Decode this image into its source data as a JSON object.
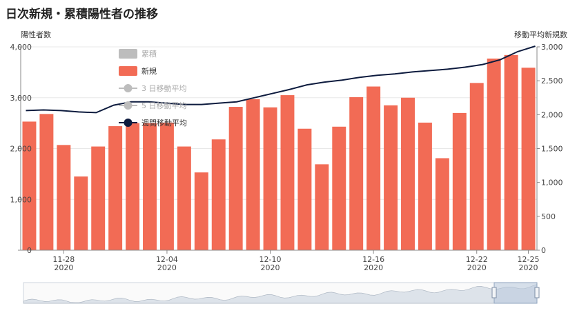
{
  "page_title": "日次新規・累積陽性者の推移",
  "colors": {
    "bar": "#f26b55",
    "line": "#0d1b3e",
    "legend_inactive": "#bdbdbd",
    "grid": "#e8e8e8",
    "navigator_fill": "#dde3ea",
    "navigator_window": "#b8c8dc"
  },
  "chart_data": {
    "type": "bar",
    "title": "日次新規・累積陽性者の推移",
    "ylabel_left": "陽性者数",
    "ylabel_right": "移動平均新規数",
    "ylim_left": [
      0,
      4000
    ],
    "ylim_right": [
      0,
      3000
    ],
    "yticks_left": [
      "0",
      "1,000",
      "2,000",
      "3,000",
      "4,000"
    ],
    "yticks_right": [
      "0",
      "500",
      "1,000",
      "1,500",
      "2,000",
      "2,500",
      "3,000"
    ],
    "x": [
      "11-26",
      "11-27",
      "11-28",
      "11-29",
      "11-30",
      "12-01",
      "12-02",
      "12-03",
      "12-04",
      "12-05",
      "12-06",
      "12-07",
      "12-08",
      "12-09",
      "12-10",
      "12-11",
      "12-12",
      "12-13",
      "12-14",
      "12-15",
      "12-16",
      "12-17",
      "12-18",
      "12-19",
      "12-20",
      "12-21",
      "12-22",
      "12-23",
      "12-24",
      "12-25"
    ],
    "x_tick_labels": [
      {
        "date": "11-28",
        "year": "2020"
      },
      {
        "date": "12-04",
        "year": "2020"
      },
      {
        "date": "12-10",
        "year": "2020"
      },
      {
        "date": "12-16",
        "year": "2020"
      },
      {
        "date": "12-22",
        "year": "2020"
      },
      {
        "date": "12-25",
        "year": "2020"
      }
    ],
    "series": [
      {
        "name": "新規",
        "axis": "left",
        "values": [
          2530,
          2680,
          2070,
          1450,
          2040,
          2440,
          2500,
          2500,
          2510,
          2040,
          1530,
          2180,
          2820,
          2970,
          2810,
          3050,
          2390,
          1690,
          2430,
          3010,
          3220,
          2850,
          3000,
          2510,
          1810,
          2700,
          3290,
          3770,
          3840,
          3590
        ]
      },
      {
        "name": "週間移動平均",
        "axis": "right",
        "values": [
          2060,
          2070,
          2060,
          2040,
          2030,
          2140,
          2190,
          2190,
          2170,
          2150,
          2150,
          2170,
          2190,
          2250,
          2310,
          2370,
          2440,
          2480,
          2510,
          2550,
          2580,
          2600,
          2630,
          2650,
          2670,
          2700,
          2740,
          2810,
          2930,
          3010
        ]
      }
    ],
    "legend": [
      {
        "label": "累積",
        "active": false,
        "kind": "rect"
      },
      {
        "label": "新規",
        "active": true,
        "kind": "rect"
      },
      {
        "label": "3 日移動平均",
        "active": false,
        "kind": "line"
      },
      {
        "label": "5 日移動平均",
        "active": false,
        "kind": "line"
      },
      {
        "label": "週間移動平均",
        "active": true,
        "kind": "line"
      }
    ],
    "legend_position": "top-left",
    "grid": true
  }
}
